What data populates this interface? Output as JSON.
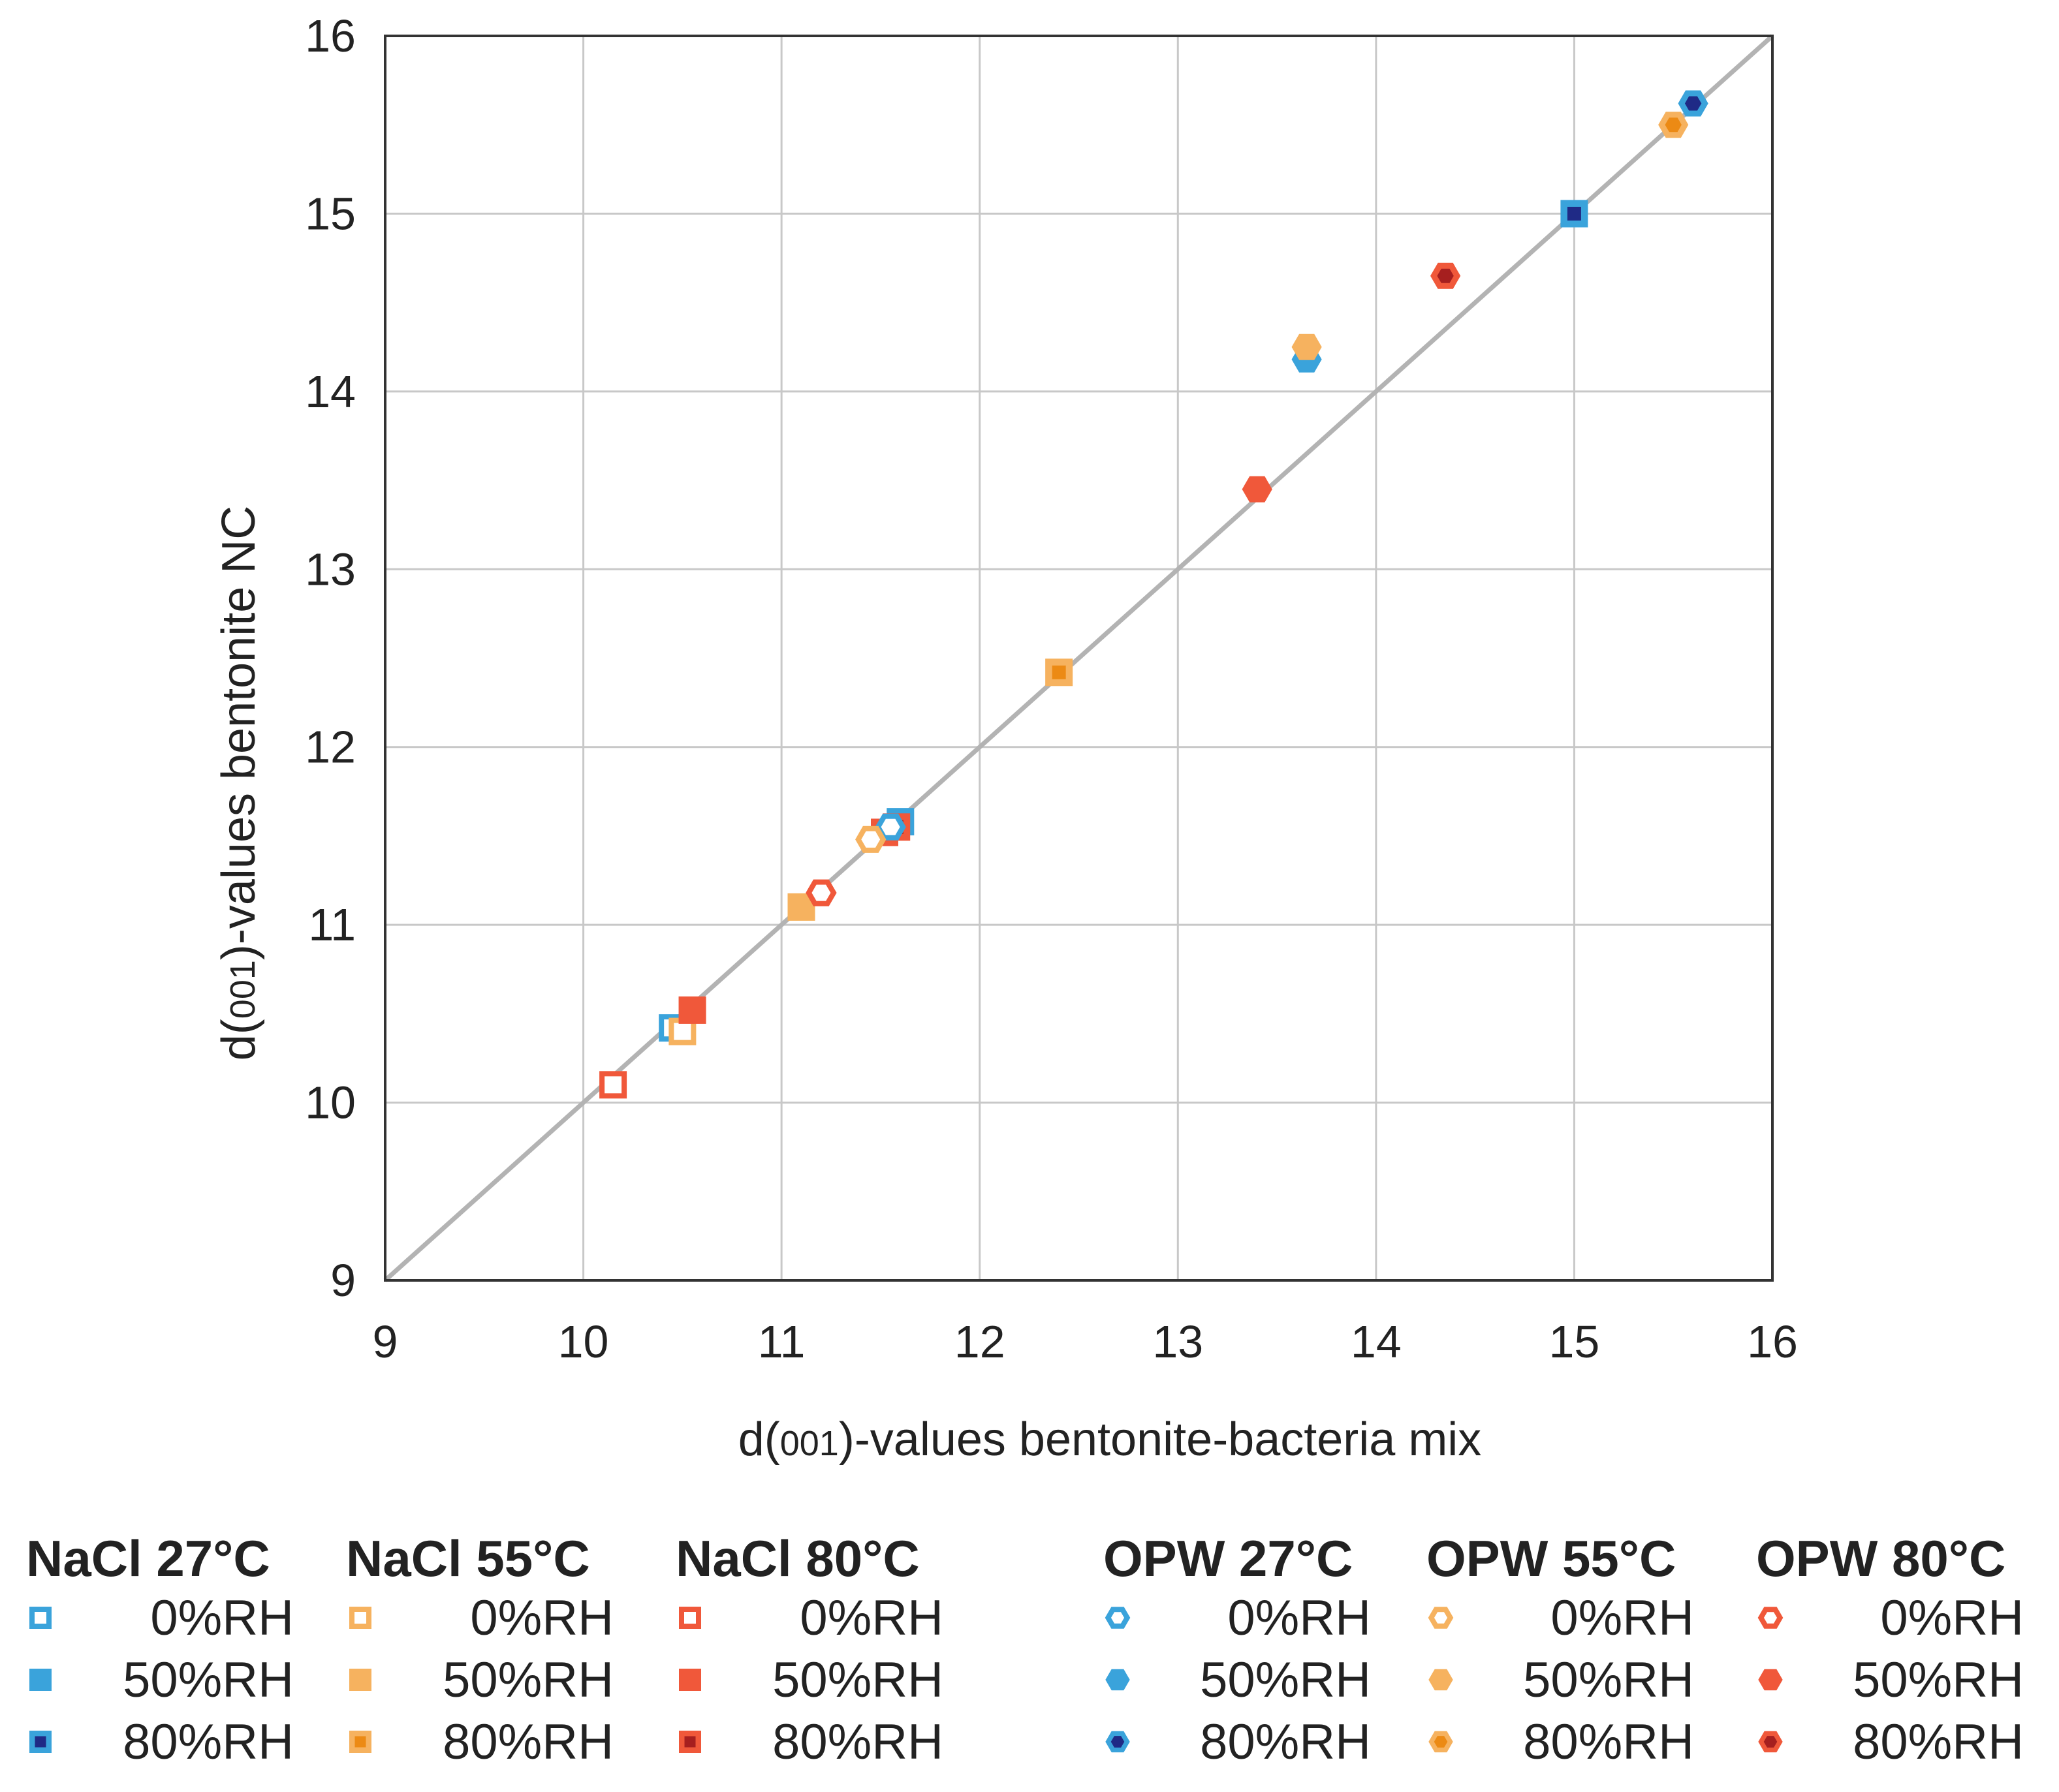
{
  "chart_data": {
    "type": "scatter",
    "title": "",
    "xlabel": {
      "prefix": "d(",
      "sub": "001",
      "suffix": ")-values bentonite-bacteria mix"
    },
    "ylabel": {
      "prefix": "d(",
      "sub": "001",
      "suffix": ")-values bentonite NC"
    },
    "xlim": [
      9,
      16
    ],
    "ylim": [
      9,
      16
    ],
    "xticks": [
      "9",
      "10",
      "11",
      "12",
      "13",
      "14",
      "15",
      "16"
    ],
    "yticks": [
      "9",
      "10",
      "11",
      "12",
      "13",
      "14",
      "15",
      "16"
    ],
    "grid": true,
    "reference_line": {
      "type": "identity",
      "from": [
        9,
        9
      ],
      "to": [
        16,
        16
      ],
      "color": "#b3b3b3"
    },
    "legend_position": "bottom",
    "colors": {
      "blue_light": "#3aa3db",
      "blue_dark": "#1f2a86",
      "orange_light": "#f6b25f",
      "orange_dark": "#ec8a14",
      "red_light": "#f0583a",
      "red_dark": "#a61f1f"
    },
    "legend_groups": [
      {
        "title": "NaCl 27°C",
        "shape": "square",
        "color": "blue"
      },
      {
        "title": "NaCl 55°C",
        "shape": "square",
        "color": "orange"
      },
      {
        "title": "NaCl 80°C",
        "shape": "square",
        "color": "red"
      },
      {
        "title": "OPW 27°C",
        "shape": "hexagon",
        "color": "blue"
      },
      {
        "title": "OPW 55°C",
        "shape": "hexagon",
        "color": "orange"
      },
      {
        "title": "OPW 80°C",
        "shape": "hexagon",
        "color": "red"
      }
    ],
    "rh_labels": [
      "0%RH",
      "50%RH",
      "80%RH"
    ],
    "series": [
      {
        "name": "NaCl 27°C 0%RH",
        "group": 0,
        "rh": 0,
        "points": [
          [
            10.45,
            10.42
          ]
        ]
      },
      {
        "name": "NaCl 27°C 50%RH",
        "group": 0,
        "rh": 1,
        "points": [
          [
            11.6,
            11.58
          ]
        ]
      },
      {
        "name": "NaCl 27°C 80%RH",
        "group": 0,
        "rh": 2,
        "points": [
          [
            15.0,
            15.0
          ]
        ]
      },
      {
        "name": "NaCl 55°C 0%RH",
        "group": 1,
        "rh": 0,
        "points": [
          [
            10.5,
            10.4
          ]
        ]
      },
      {
        "name": "NaCl 55°C 50%RH",
        "group": 1,
        "rh": 1,
        "points": [
          [
            11.1,
            11.1
          ]
        ]
      },
      {
        "name": "NaCl 55°C 80%RH",
        "group": 1,
        "rh": 2,
        "points": [
          [
            12.4,
            12.42
          ]
        ]
      },
      {
        "name": "NaCl 80°C 0%RH",
        "group": 2,
        "rh": 0,
        "points": [
          [
            10.15,
            10.1
          ]
        ]
      },
      {
        "name": "NaCl 80°C 50%RH",
        "group": 2,
        "rh": 1,
        "points": [
          [
            10.55,
            10.52
          ],
          [
            11.52,
            11.52
          ]
        ]
      },
      {
        "name": "NaCl 80°C 80%RH",
        "group": 2,
        "rh": 2,
        "points": [
          [
            11.58,
            11.55
          ]
        ]
      },
      {
        "name": "OPW 27°C 0%RH",
        "group": 3,
        "rh": 0,
        "points": [
          [
            11.55,
            11.55
          ]
        ]
      },
      {
        "name": "OPW 27°C 50%RH",
        "group": 3,
        "rh": 1,
        "points": [
          [
            13.65,
            14.18
          ]
        ]
      },
      {
        "name": "OPW 27°C 80%RH",
        "group": 3,
        "rh": 2,
        "points": [
          [
            15.6,
            15.62
          ]
        ]
      },
      {
        "name": "OPW 55°C 0%RH",
        "group": 4,
        "rh": 0,
        "points": [
          [
            11.45,
            11.48
          ]
        ]
      },
      {
        "name": "OPW 55°C 50%RH",
        "group": 4,
        "rh": 1,
        "points": [
          [
            13.65,
            14.25
          ]
        ]
      },
      {
        "name": "OPW 55°C 80%RH",
        "group": 4,
        "rh": 2,
        "points": [
          [
            15.5,
            15.5
          ]
        ]
      },
      {
        "name": "OPW 80°C 0%RH",
        "group": 5,
        "rh": 0,
        "points": [
          [
            11.2,
            11.18
          ]
        ]
      },
      {
        "name": "OPW 80°C 50%RH",
        "group": 5,
        "rh": 1,
        "points": [
          [
            13.4,
            13.45
          ]
        ]
      },
      {
        "name": "OPW 80°C 80%RH",
        "group": 5,
        "rh": 2,
        "points": [
          [
            14.35,
            14.65
          ]
        ]
      }
    ]
  }
}
